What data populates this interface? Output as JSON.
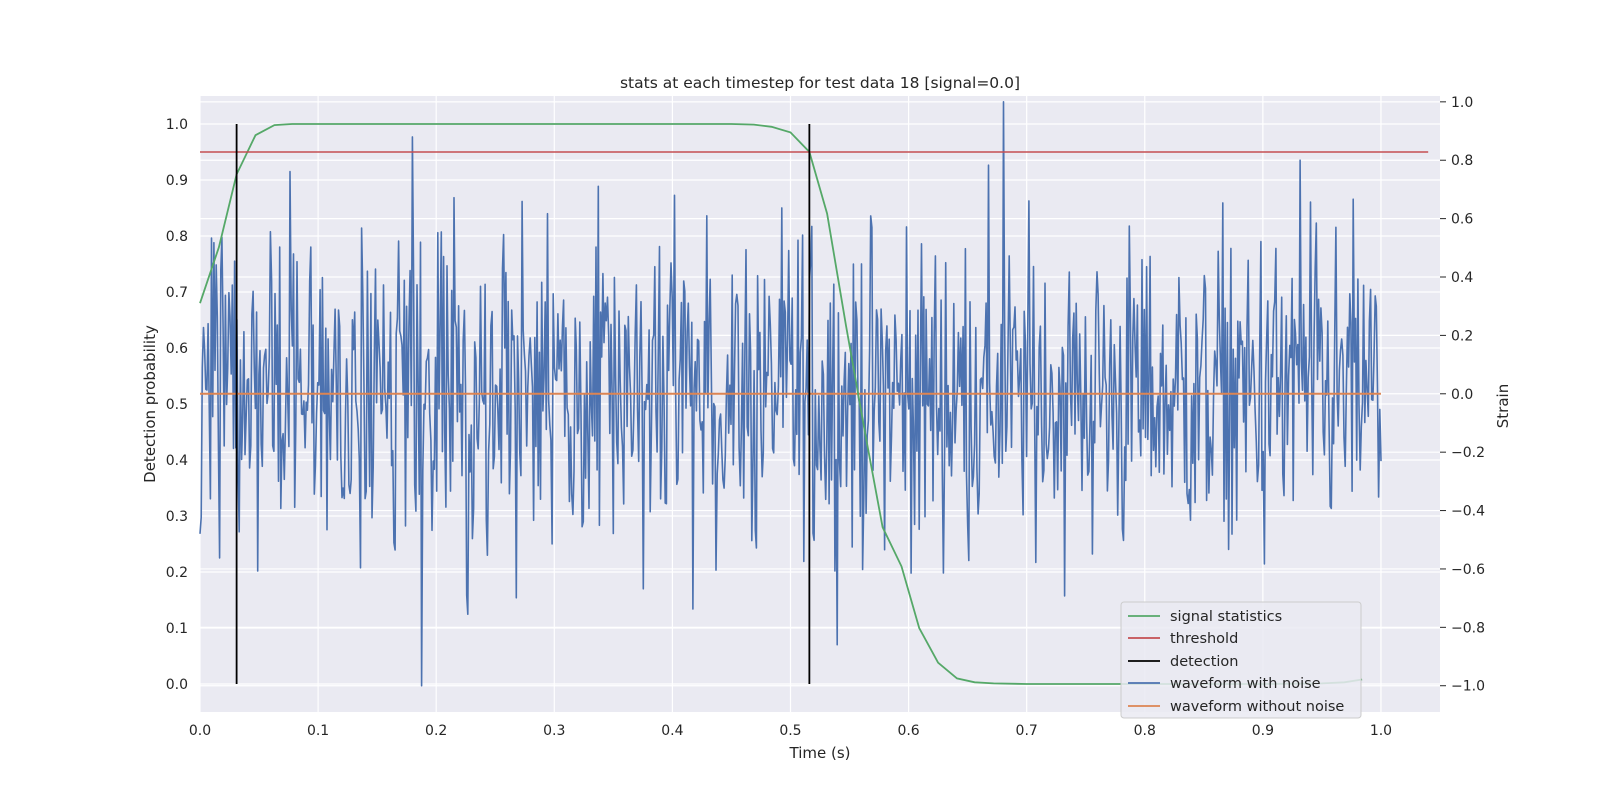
{
  "chart_data": {
    "type": "line",
    "title": "stats at each timestep for test data 18 [signal=0.0]",
    "xlabel": "Time (s)",
    "ylabel": "Detection probability",
    "y2label": "Strain",
    "xlim": [
      0.0,
      1.05
    ],
    "ylim": [
      -0.05,
      1.05
    ],
    "y2lim": [
      -1.09,
      1.02
    ],
    "xticks": [
      0.0,
      0.1,
      0.2,
      0.3,
      0.4,
      0.5,
      0.6,
      0.7,
      0.8,
      0.9,
      1.0
    ],
    "xtick_labels": [
      "0.0",
      "0.1",
      "0.2",
      "0.3",
      "0.4",
      "0.5",
      "0.6",
      "0.7",
      "0.8",
      "0.9",
      "1.0"
    ],
    "yticks": [
      0.0,
      0.1,
      0.2,
      0.3,
      0.4,
      0.5,
      0.6,
      0.7,
      0.8,
      0.9,
      1.0
    ],
    "ytick_labels": [
      "0.0",
      "0.1",
      "0.2",
      "0.3",
      "0.4",
      "0.5",
      "0.6",
      "0.7",
      "0.8",
      "0.9",
      "1.0"
    ],
    "y2ticks": [
      -1.0,
      -0.8,
      -0.6,
      -0.4,
      -0.2,
      0.0,
      0.2,
      0.4,
      0.6,
      0.8,
      1.0
    ],
    "y2tick_labels": [
      "−1.0",
      "−0.8",
      "−0.6",
      "−0.4",
      "−0.2",
      "0.0",
      "0.2",
      "0.4",
      "0.6",
      "0.8",
      "1.0"
    ],
    "grid": true,
    "legend_position": "bottom-right",
    "colors": {
      "plot_background": "#eaeaf2",
      "grid": "#ffffff",
      "signal_statistics": "#55a868",
      "threshold": "#c44e52",
      "detection": "#000000",
      "waveform_with_noise": "#4c72b0",
      "waveform_without_noise": "#dd8452"
    },
    "series": [
      {
        "name": "signal statistics",
        "axis": "left",
        "x": [
          0.0,
          0.016,
          0.031,
          0.047,
          0.063,
          0.078,
          0.094,
          0.11,
          0.2,
          0.3,
          0.4,
          0.45,
          0.469,
          0.484,
          0.5,
          0.516,
          0.531,
          0.547,
          0.563,
          0.578,
          0.594,
          0.609,
          0.625,
          0.641,
          0.656,
          0.672,
          0.7,
          0.8,
          0.9,
          0.95,
          0.969,
          0.984
        ],
        "y": [
          0.68,
          0.78,
          0.91,
          0.98,
          0.998,
          1.0,
          1.0,
          1.0,
          1.0,
          1.0,
          1.0,
          1.0,
          0.999,
          0.995,
          0.985,
          0.95,
          0.84,
          0.64,
          0.45,
          0.28,
          0.21,
          0.1,
          0.038,
          0.01,
          0.003,
          0.001,
          0.0,
          0.0,
          0.0,
          0.001,
          0.003,
          0.008
        ]
      },
      {
        "name": "threshold",
        "axis": "left",
        "x": [
          0.0,
          1.04
        ],
        "y": [
          0.95,
          0.95
        ]
      },
      {
        "name": "detection",
        "axis": "left",
        "x": [
          0.031,
          0.516
        ],
        "y_range": [
          0.0,
          1.0
        ]
      },
      {
        "name": "waveform with noise",
        "axis": "right",
        "x_range": [
          0.0,
          1.0
        ],
        "n_points": 1024,
        "y_range": [
          -1.0,
          1.0
        ],
        "peaks": [
          {
            "x": 0.18,
            "y": 0.88
          },
          {
            "x": 0.188,
            "y": -1.0
          },
          {
            "x": 0.68,
            "y": 1.0
          },
          {
            "x": 0.932,
            "y": 0.8
          }
        ]
      },
      {
        "name": "waveform without noise",
        "axis": "right",
        "x": [
          0.0,
          1.0
        ],
        "y": [
          0.0,
          0.0
        ]
      }
    ]
  }
}
